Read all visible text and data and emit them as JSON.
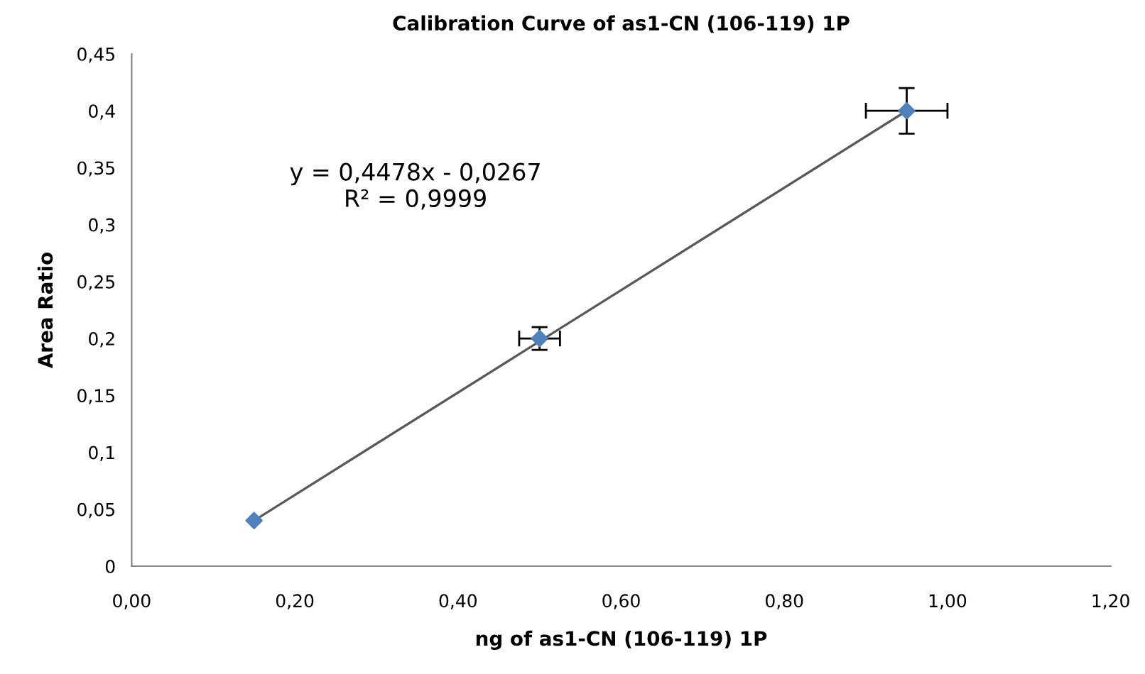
{
  "chart_data": {
    "type": "scatter",
    "title": "Calibration Curve of as1-CN (106-119) 1P",
    "xlabel": "ng of as1-CN (106-119) 1P",
    "ylabel": "Area Ratio",
    "series": [
      {
        "color": "#4f81bd",
        "x": [
          0.15,
          0.5,
          0.95
        ],
        "values": [
          0.04,
          0.2,
          0.4
        ],
        "errors": [
          null,
          0.01,
          0.02
        ],
        "xerrors": [
          null,
          0.025,
          0.05
        ],
        "marker": "diamond"
      },
      {
        "type": "line",
        "color": "#595959",
        "x": [
          0.15,
          0.95
        ],
        "values": [
          0.04,
          0.4
        ],
        "marker": "none",
        "line_style": "solid"
      }
    ],
    "annotations": [
      "y = 0,4478x - 0,0267\nR² = 0,9999"
    ],
    "xlim": [
      0,
      1.2
    ],
    "xticks": [
      {
        "value": 0,
        "label": "0,00"
      },
      {
        "value": 0.2,
        "label": "0,20"
      },
      {
        "value": 0.4,
        "label": "0,40"
      },
      {
        "value": 0.6,
        "label": "0,60"
      },
      {
        "value": 0.8,
        "label": "0,80"
      },
      {
        "value": 1.0,
        "label": "1,00"
      },
      {
        "value": 1.2,
        "label": "1,20"
      }
    ],
    "ylim": [
      0,
      0.45
    ],
    "yticks": [
      0,
      {
        "value": 0.05,
        "label": "0,05"
      },
      {
        "value": 0.1,
        "label": "0,1"
      },
      {
        "value": 0.15,
        "label": "0,15"
      },
      {
        "value": 0.2,
        "label": "0,2"
      },
      {
        "value": 0.25,
        "label": "0,25"
      },
      {
        "value": 0.3,
        "label": "0,3"
      },
      {
        "value": 0.35,
        "label": "0,35"
      },
      {
        "value": 0.4,
        "label": "0,4"
      },
      {
        "value": 0.45,
        "label": "0,45"
      }
    ],
    "grid": false,
    "legend": false
  }
}
